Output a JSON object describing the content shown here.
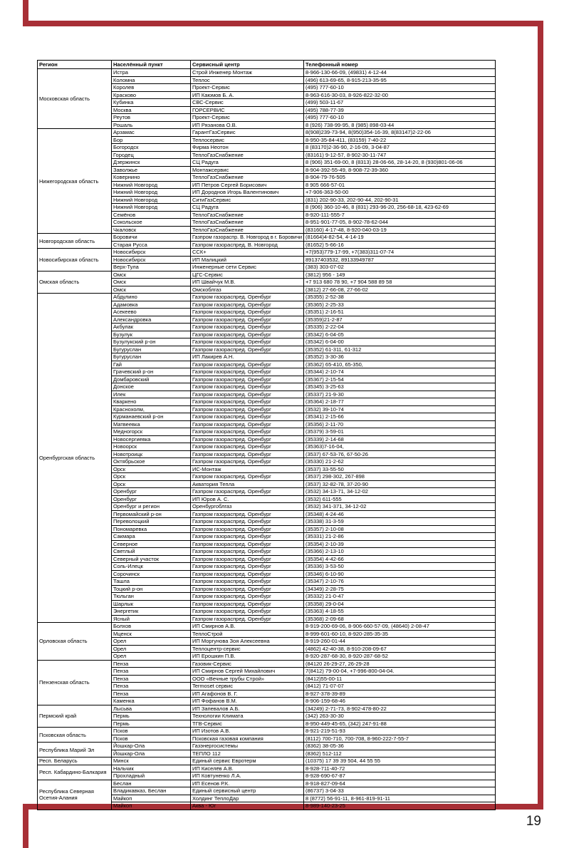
{
  "page": {
    "number": "19"
  },
  "frame": {
    "color": "#a82f36"
  },
  "table": {
    "headers": [
      "Регион",
      "Населённый пункт",
      "Сервисный центр",
      "Телефонный номер"
    ],
    "regions": [
      {
        "name": "Московская область",
        "rows": [
          {
            "settlement": "Истра",
            "center": "Строй Инженер Монтаж",
            "phone": "8-966-130-66-09, (49831) 4-12-44"
          },
          {
            "settlement": "Коломна",
            "center": "Теплос",
            "phone": "(496) 613-69-65, 8-915-213-35-95"
          },
          {
            "settlement": "Королев",
            "center": "Проект-Сервис",
            "phone": "(495) 777-60-10"
          },
          {
            "settlement": "Красково",
            "center": "ИП Каюмов Б. А.",
            "phone": "8-963-616-30-03, 8-926-822-32-00"
          },
          {
            "settlement": "Кубинка",
            "center": "СВС-Сервис",
            "phone": "(499) 503-11-67"
          },
          {
            "settlement": "Москва",
            "center": "ГОРСЕРВИС",
            "phone": "(495) 788-77-39"
          },
          {
            "settlement": "Реутов",
            "center": "Проект-Сервис",
            "phone": "(495) 777-60-10"
          },
          {
            "settlement": "Рошаль",
            "center": "ИП Рязанова О.В.",
            "phone": "8 (926) 738-99-95, 8 (985) 898-03-44"
          }
        ]
      },
      {
        "name": "Нижегородская область",
        "rows": [
          {
            "settlement": "Арзамас",
            "center": "ГарантГазСервис",
            "phone": "8(908)239-73-94, 8(950)354-16-39, 8(83147)2-22-06"
          },
          {
            "settlement": "Бор",
            "center": "Теплосервис",
            "phone": "8-950-35-84-411, (83159) 7-40-22"
          },
          {
            "settlement": "Богородск",
            "center": "Фирма Неотон",
            "phone": "8 (83170)2-36-90, 2-16-09, 3-04-87"
          },
          {
            "settlement": "Городец",
            "center": "ТеплоГазСнабжение",
            "phone": "(83161) 9-12-57, 8-902-30-11-747"
          },
          {
            "settlement": "Дзержинск",
            "center": "СЦ Радуга",
            "phone": "8 (906) 351-69-00, 8 (8313) 28-06-66, 28-14-20, 8 (930)801-06-06"
          },
          {
            "settlement": "Заволжье",
            "center": "Монтажсервис",
            "phone": "8-904-392-55-49, 8-908-72-39-360"
          },
          {
            "settlement": "Ковернино",
            "center": "ТеплоГазСнабжение",
            "phone": "8-904-79-76-505"
          },
          {
            "settlement": "Нижний Новгород",
            "center": "ИП Петров Сергей Борисович",
            "phone": "8 905 666-57-01"
          },
          {
            "settlement": "Нижний Новгород",
            "center": "ИП Дороднов Игорь Валентинович",
            "phone": "+7-906-363-50-00"
          },
          {
            "settlement": "Нижний Новгород",
            "center": "СитиГазСервис",
            "phone": "(831) 202-90-33, 202-90-44, 202-90-31"
          },
          {
            "settlement": "Нижний Новгород",
            "center": "СЦ Радуга",
            "phone": "8 (906) 360-10-46, 8 (831) 293-96-20, 256-68-18, 423-62-69"
          },
          {
            "settlement": "Семёнов",
            "center": "ТеплоГазСнабжение",
            "phone": "8-920-111-555-7"
          },
          {
            "settlement": "Сокольское",
            "center": "ТеплоГазСнабжение",
            "phone": "8-951-901-77-05, 8-902-78-62-044"
          },
          {
            "settlement": "Чкаловск",
            "center": "ТеплоГазСнабжение",
            "phone": "(83160) 4-17-48, 8-920-040-03-19"
          }
        ]
      },
      {
        "name": "Новгородская область",
        "rows": [
          {
            "settlement": "Боровичи",
            "center": "Газпром газораспр. В. Новгород в г. Боровичи",
            "phone": "(81664)4-82-54, 4-14-19"
          },
          {
            "settlement": "Старая Русса",
            "center": "Газпром газораспред. В. Новгород",
            "phone": "(81652) 5-66-16"
          }
        ]
      },
      {
        "name": "Новосибирская область",
        "rows": [
          {
            "settlement": "Новосибирск",
            "center": "ССК+",
            "phone": "+7(953)779-17-99, +7(383)311-07-74"
          },
          {
            "settlement": "Новосибирск",
            "center": "ИП Малицкий",
            "phone": "89137403532, 89133949787"
          },
          {
            "settlement": "Верх-Тула",
            "center": "Инженерные сети Сервис",
            "phone": "(383) 303-07-02"
          }
        ]
      },
      {
        "name": "Омская область",
        "rows": [
          {
            "settlement": "Омск",
            "center": "ЦГС-Сервис",
            "phone": "(3812) 956 - 149"
          },
          {
            "settlement": "Омск",
            "center": "ИП Швайчук М.В.",
            "phone": "+7 913 680 78 90, +7 904 588 89 58"
          },
          {
            "settlement": "Омск",
            "center": "Омскоблгаз",
            "phone": "(3812) 27-66-08, 27-66-02"
          }
        ]
      },
      {
        "name": "Оренбургская область",
        "rows": [
          {
            "settlement": "Абдулино",
            "center": "Газпром газораспред. Оренбург",
            "phone": "(35355) 2-52-38"
          },
          {
            "settlement": "Адамовка",
            "center": "Газпром газораспред. Оренбург",
            "phone": "(35365) 2-25-33"
          },
          {
            "settlement": "Асекеево",
            "center": "Газпром газораспред. Оренбург",
            "phone": "(35351) 2-16-51"
          },
          {
            "settlement": "Александровка",
            "center": "Газпром газораспред. Оренбург",
            "phone": "(35359)21-2-87"
          },
          {
            "settlement": "Акбулак",
            "center": "Газпром газораспред. Оренбург",
            "phone": "(35335) 2-22-04"
          },
          {
            "settlement": "Бузулук",
            "center": "Газпром газораспред. Оренбург",
            "phone": "(35342) 6-04-05"
          },
          {
            "settlement": "Бузулукский р-он",
            "center": "Газпром газораспред. Оренбург",
            "phone": "(35342) 6-04-00"
          },
          {
            "settlement": "Бугуруслан",
            "center": "Газпром газораспред. Оренбург",
            "phone": "(35352) 61-311, 61-312"
          },
          {
            "settlement": "Бугуруслан",
            "center": "ИП Лакирев А.Н.",
            "phone": "(35352) 3-30-36"
          },
          {
            "settlement": "Гай",
            "center": "Газпром газораспред. Оренбург",
            "phone": "(35362) 65-410, 65-350,"
          },
          {
            "settlement": "Грачевский р-он",
            "center": "Газпром газораспред. Оренбург",
            "phone": "(35344) 2-10-74"
          },
          {
            "settlement": "Домбаровский",
            "center": "Газпром газораспред. Оренбург",
            "phone": "(35367) 2-15-54"
          },
          {
            "settlement": "Донское",
            "center": "Газпром газораспред. Оренбург",
            "phone": "(35345) 3-25-63"
          },
          {
            "settlement": "Илек",
            "center": "Газпром газораспред. Оренбург",
            "phone": "(35337) 21-9-30"
          },
          {
            "settlement": "Кваркено",
            "center": "Газпром газораспред. Оренбург",
            "phone": "(35364) 2-18-77"
          },
          {
            "settlement": "Краснохолм,",
            "center": "Газпром газораспред. Оренбург",
            "phone": "(3532) 39-10-74"
          },
          {
            "settlement": "Курманаевский р-он",
            "center": "Газпром газораспред. Оренбург",
            "phone": "(35341) 2-15-66"
          },
          {
            "settlement": "Матвеевка",
            "center": "Газпром газораспред. Оренбург",
            "phone": "(35356) 2-11-70"
          },
          {
            "settlement": "Медногорск",
            "center": "Газпром газораспред. Оренбург",
            "phone": "(35379) 3-59-01"
          },
          {
            "settlement": "Новосергиевка",
            "center": "Газпром газораспред. Оренбург",
            "phone": "(35339) 2-14-68"
          },
          {
            "settlement": "Новоорск",
            "center": "Газпром газораспред. Оренбург",
            "phone": "(35363)7-16-04,"
          },
          {
            "settlement": "Новотроицк",
            "center": "Газпром газораспред. Оренбург",
            "phone": "(3537) 67-53-76, 67-50-26"
          },
          {
            "settlement": "Октябрьское",
            "center": "Газпром газораспред. Оренбург",
            "phone": "(35330) 21-2-62"
          },
          {
            "settlement": "Орск",
            "center": "ИС-Монтаж",
            "phone": "(3537) 33-55-50"
          },
          {
            "settlement": "Орск",
            "center": "Газпром газораспред. Оренбург",
            "phone": "(3537) 298-302, 267-898"
          },
          {
            "settlement": "Орск",
            "center": "Акватория Тепла",
            "phone": "(3537) 32-82-78, 37-20-90"
          },
          {
            "settlement": "Оренбург",
            "center": "Газпром газораспред. Оренбург",
            "phone": "(3532) 34-13-71, 34-12-02"
          },
          {
            "settlement": "Оренбург",
            "center": "ИП Юров А. С.",
            "phone": "(3532) 611-555"
          },
          {
            "settlement": "Оренбург и регион",
            "center": "Оренбургоблгаз",
            "phone": "(3532) 341-371, 34-12-02"
          },
          {
            "settlement": "Первомайский р-он",
            "center": "Газпром газораспред. Оренбург",
            "phone": "(35348) 4-24-46"
          },
          {
            "settlement": "Переволоцкий",
            "center": "Газпром газораспред. Оренбург",
            "phone": "(35338) 31-3-59"
          },
          {
            "settlement": "Пономаревка",
            "center": "Газпром газораспред. Оренбург",
            "phone": "(35357) 2-10-08"
          },
          {
            "settlement": "Сакмара",
            "center": "Газпром газораспред. Оренбург",
            "phone": "(35331) 21-2-86"
          },
          {
            "settlement": "Северное",
            "center": "Газпром газораспред. Оренбург",
            "phone": "(35354) 2-10-39"
          },
          {
            "settlement": "Светлый",
            "center": "Газпром газораспред. Оренбург",
            "phone": "(35366) 2-13-10"
          },
          {
            "settlement": "Северный участок",
            "center": "Газпром газораспред. Оренбург",
            "phone": "(35354) 4-42-66"
          },
          {
            "settlement": "Соль-Илецк",
            "center": "Газпром газораспред. Оренбург",
            "phone": "(35336) 3-53-50"
          },
          {
            "settlement": "Сорочинск",
            "center": "Газпром газораспред. Оренбург",
            "phone": "(35346) 6-10-90"
          },
          {
            "settlement": "Ташла",
            "center": "Газпром газораспред. Оренбург",
            "phone": "(35347) 2-10-76"
          },
          {
            "settlement": "Тоцкий р-он",
            "center": "Газпром газораспред. Оренбург",
            "phone": "(34349) 2-28-75"
          },
          {
            "settlement": "Тюльган",
            "center": "Газпром газораспред. Оренбург",
            "phone": "(35332) 21-0-47"
          },
          {
            "settlement": "Шарлык",
            "center": "Газпром газораспред. Оренбург",
            "phone": "(35358) 29-0-04"
          },
          {
            "settlement": "Энергетик",
            "center": "Газпром газораспред. Оренбург",
            "phone": "(35363) 4-18-55"
          },
          {
            "settlement": "Ясный",
            "center": "Газпром газораспред. Оренбург",
            "phone": "(35368) 2-09-68"
          }
        ]
      },
      {
        "name": "Орловская область",
        "rows": [
          {
            "settlement": "Болхов",
            "center": "ИП Смирнов А.В.",
            "phone": "8-919-200-69-06, 8-906-660-57-09, (48640) 2-08-47"
          },
          {
            "settlement": "Мценск",
            "center": "ТеплоСтрой",
            "phone": "8-999-601-60-10, 8-920-285-35-35"
          },
          {
            "settlement": "Орел",
            "center": "ИП Моргунова Зоя Алексеевна",
            "phone": "8-919-260-01-44"
          },
          {
            "settlement": "Орел",
            "center": "Теплоцентр-сервис",
            "phone": "(4862) 42-40-38, 8-910-208-09-67"
          },
          {
            "settlement": "Орел",
            "center": "ИП Ерошкин П.В.",
            "phone": "8-920-287-68-30, 8-920-287-68-52"
          }
        ]
      },
      {
        "name": "Пензенская область",
        "rows": [
          {
            "settlement": "Пенза",
            "center": "Газовик-Сервис",
            "phone": "(84120 26-29-27, 26-29-28"
          },
          {
            "settlement": "Пенза",
            "center": "ИП Смирнов Сергей Михайлович",
            "phone": "7(8412) 79-00-04, +7-996-800-04-04."
          },
          {
            "settlement": "Пенза",
            "center": "ООО «Вечные трубы Строй»",
            "phone": "(8412)55-00-11"
          },
          {
            "settlement": "Пенза",
            "center": "Termoset сервис",
            "phone": "(8412) 71-07-07"
          },
          {
            "settlement": "Пенза",
            "center": "ИП Агафонов В. Г.",
            "phone": "8-927-378-39-89"
          },
          {
            "settlement": "Каменка",
            "center": "ИП Фофанов В.М.",
            "phone": "8-906-159-68-46"
          }
        ]
      },
      {
        "name": "Пермский край",
        "rows": [
          {
            "settlement": "Лысьва",
            "center": "ИП Запевалов А.Б.",
            "phone": "(34249) 2-71-73, 8-902-478-80-22"
          },
          {
            "settlement": "Пермь",
            "center": "Технологии Климата",
            "phone": "(342) 263-30-30"
          },
          {
            "settlement": "Пермь",
            "center": "ТГВ-Сервис",
            "phone": "8-950-449-45-65, (342) 247-91-88"
          }
        ]
      },
      {
        "name": "Псковская область",
        "rows": [
          {
            "settlement": "Псков",
            "center": "ИП Изотов А.В.",
            "phone": "8-921-219-51-93"
          },
          {
            "settlement": "Псков",
            "center": "Псковская газовая компания",
            "phone": "(8112) 700-710, 700-708, 8-960-222-7-55-7"
          }
        ]
      },
      {
        "name": "Республика Марий Эл",
        "rows": [
          {
            "settlement": "Йошкар-Ола",
            "center": "Газэнергосистемы",
            "phone": "(8362) 38-05-36"
          },
          {
            "settlement": "Йошкар-Ола",
            "center": "ТЕПЛО 112",
            "phone": "(8362) 512-112"
          }
        ]
      },
      {
        "name": "Респ. Беларусь",
        "rows": [
          {
            "settlement": "Минск",
            "center": "Единый сервис Евротерм",
            "phone": "(10375) 17 39 39 504, 44 55 55"
          }
        ]
      },
      {
        "name": "Респ. Кабардино-Балкария",
        "rows": [
          {
            "settlement": "Нальчик",
            "center": "ИП Киселёв А.В.",
            "phone": "8-928-711-40-72"
          },
          {
            "settlement": "Прохладный",
            "center": "ИП Ковтуненко Л.А.",
            "phone": "8-928-690-67-87"
          }
        ]
      },
      {
        "name": "Республика Северная Осетия-Алания",
        "rows": [
          {
            "settlement": "Беслан",
            "center": "ИП Есенов  Р.К.",
            "phone": "8-918-827-09-64"
          },
          {
            "settlement": "Владикавказ, Беслан",
            "center": "Единый сервисный центр",
            "phone": "(86737) 3-04-33"
          },
          {
            "settlement": "Майкоп",
            "center": "Холдинг ТеплоДар",
            "phone": "8 (8772) 56-91-11, 8-961-819-91-11"
          },
          {
            "settlement": "Майкоп",
            "center": "Аква - Юг",
            "phone": "8-989-140-23-25"
          }
        ]
      }
    ]
  }
}
